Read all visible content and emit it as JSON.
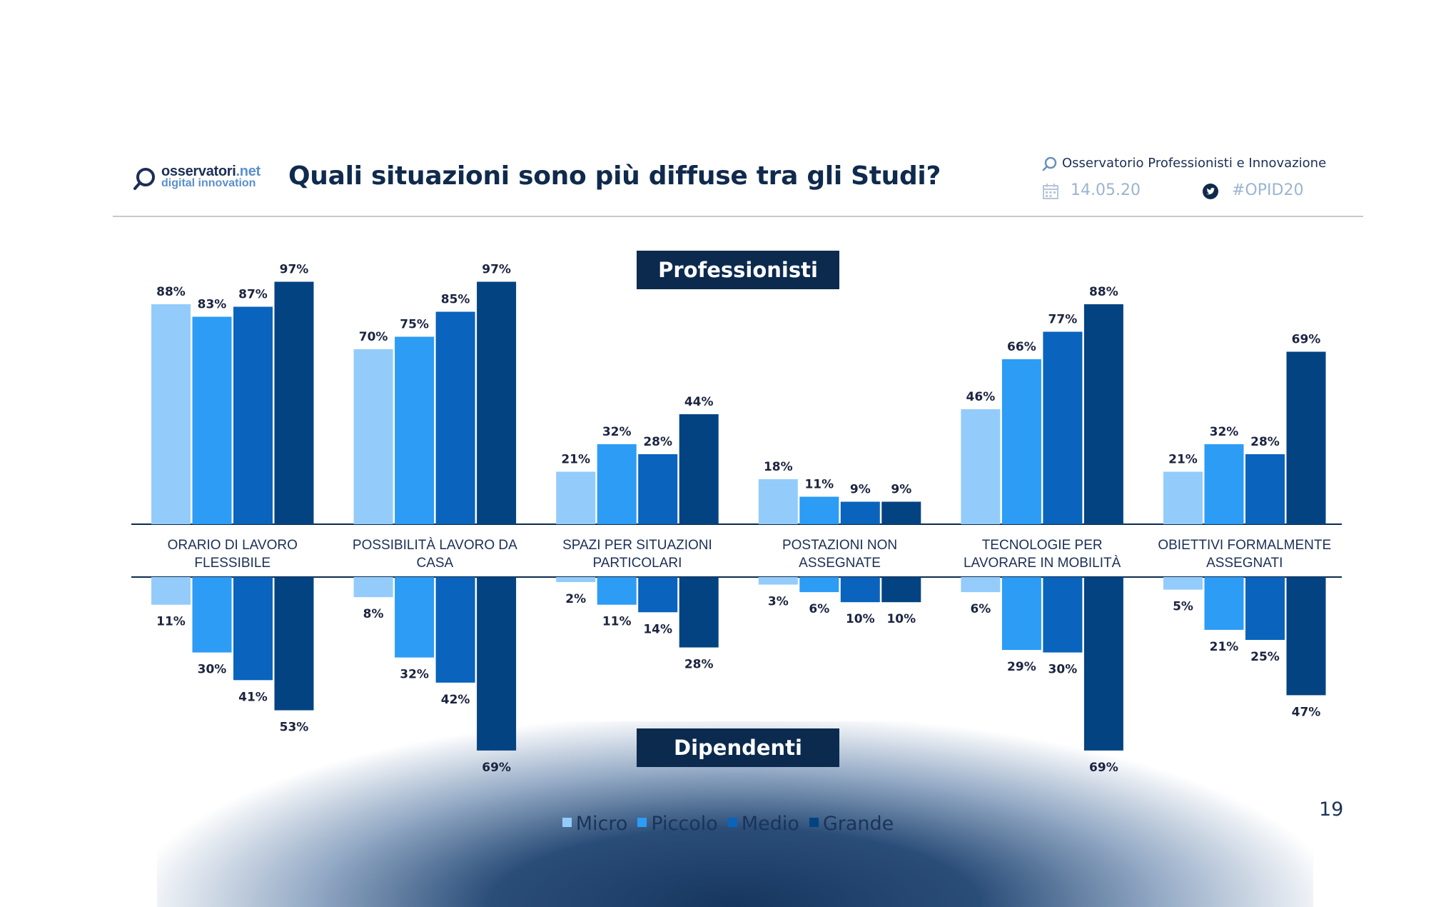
{
  "header": {
    "logo_line1_main": "osservatori",
    "logo_line1_suffix": ".net",
    "logo_line2": "digital innovation",
    "title": "Quali situazioni sono più diffuse tra gli Studi?",
    "observatory": "Osservatorio Professionisti e Innovazione",
    "date": "14.05.20",
    "hashtag": "#OPID20"
  },
  "icons": {
    "logo": "magnifier-icon",
    "observatory": "magnifier-icon",
    "date": "calendar-icon",
    "hashtag": "twitter-icon"
  },
  "sections": {
    "top": "Professionisti",
    "bottom": "Dipendenti"
  },
  "page_number": "19",
  "chart_data": {
    "type": "bar",
    "title": "Quali situazioni sono più diffuse tra gli Studi?",
    "layout": "diverging",
    "categories": [
      [
        "ORARIO DI LAVORO",
        "FLESSIBILE"
      ],
      [
        "POSSIBILITÀ LAVORO DA",
        "CASA"
      ],
      [
        "SPAZI PER SITUAZIONI",
        "PARTICOLARI"
      ],
      [
        "POSTAZIONI NON",
        "ASSEGNATE"
      ],
      [
        "TECNOLOGIE PER",
        "LAVORARE IN MOBILITÀ"
      ],
      [
        "OBIETTIVI FORMALMENTE",
        "ASSEGNATI"
      ]
    ],
    "legend": [
      {
        "name": "Micro",
        "color": "#93ccfb"
      },
      {
        "name": "Piccolo",
        "color": "#2c9cf5"
      },
      {
        "name": "Medio",
        "color": "#0a63bc"
      },
      {
        "name": "Grande",
        "color": "#034381"
      }
    ],
    "legend_position": "bottom-center",
    "professionisti": {
      "label": "Professionisti",
      "series": [
        {
          "name": "Micro",
          "values": [
            88,
            70,
            21,
            18,
            46,
            21
          ]
        },
        {
          "name": "Piccolo",
          "values": [
            83,
            75,
            32,
            11,
            66,
            32
          ]
        },
        {
          "name": "Medio",
          "values": [
            87,
            85,
            28,
            9,
            77,
            28
          ]
        },
        {
          "name": "Grande",
          "values": [
            97,
            97,
            44,
            9,
            88,
            69
          ]
        }
      ]
    },
    "dipendenti": {
      "label": "Dipendenti",
      "series": [
        {
          "name": "Micro",
          "values": [
            11,
            8,
            2,
            3,
            6,
            5
          ]
        },
        {
          "name": "Piccolo",
          "values": [
            30,
            32,
            11,
            6,
            29,
            21
          ]
        },
        {
          "name": "Medio",
          "values": [
            41,
            42,
            14,
            10,
            30,
            25
          ]
        },
        {
          "name": "Grande",
          "values": [
            53,
            69,
            28,
            10,
            69,
            47
          ]
        }
      ]
    },
    "value_suffix": "%",
    "ylim": [
      0,
      100
    ],
    "grid": false
  }
}
